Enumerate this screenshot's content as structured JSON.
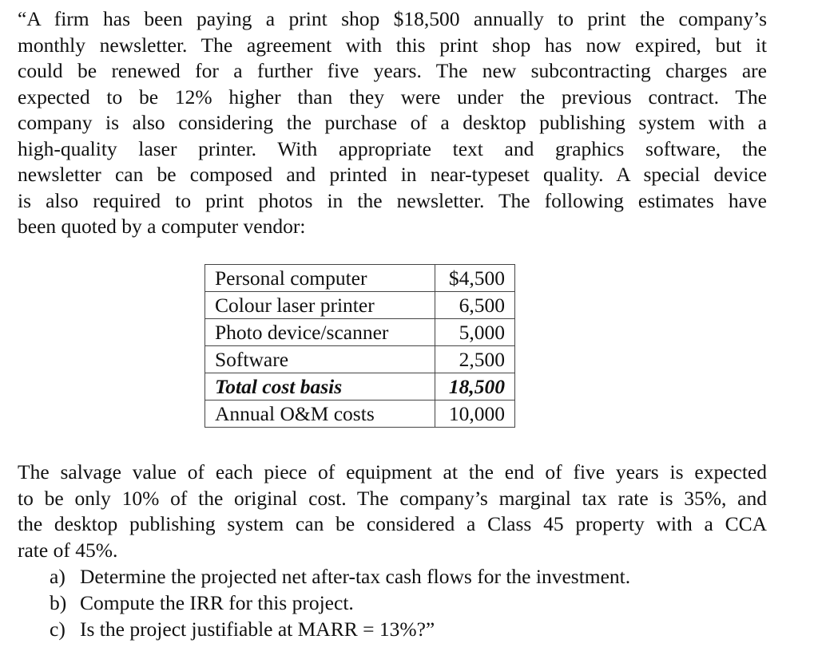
{
  "intro_lines": [
    "“A firm has been paying a print shop $18,500 annually to print the company’s",
    "monthly newsletter. The agreement with this print shop has now expired, but it",
    "could be renewed for a further five years. The new subcontracting charges are",
    "expected to be 12% higher than they were under the previous contract. The",
    "company is also considering the purchase of a desktop publishing system with a",
    "high-quality laser printer. With appropriate text and graphics software, the",
    "newsletter can be composed and printed in near-typeset quality. A special device",
    "is also required to print photos in the newsletter. The following estimates have",
    "been quoted by a computer vendor:"
  ],
  "table": [
    {
      "item": "Personal computer",
      "cost": "$4,500"
    },
    {
      "item": "Colour laser printer",
      "cost": "6,500"
    },
    {
      "item": "Photo device/scanner",
      "cost": "5,000"
    },
    {
      "item": "Software",
      "cost": "2,500"
    },
    {
      "item": "Total cost basis",
      "cost": "18,500"
    },
    {
      "item": "Annual O&M costs",
      "cost": "10,000"
    }
  ],
  "second_lines": [
    "The salvage value of each piece of equipment at the end of five years is expected",
    "to be only 10% of the original cost. The company’s marginal tax rate is 35%, and",
    "the desktop publishing system can be considered a Class 45 property with a CCA",
    "rate of 45%."
  ],
  "questions": [
    {
      "marker": "a)",
      "text": "Determine the projected net after-tax cash flows for the investment."
    },
    {
      "marker": "b)",
      "text": "Compute the IRR for this project."
    },
    {
      "marker": "c)",
      "text": "Is the project justifiable at MARR = 13%?”"
    }
  ]
}
